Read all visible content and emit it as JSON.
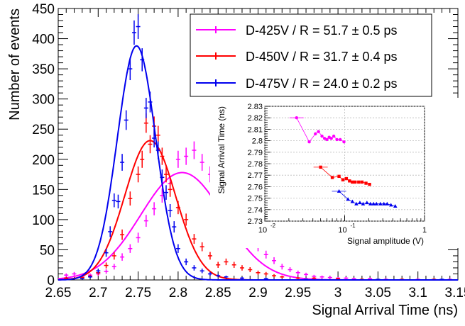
{
  "chart_data": [
    {
      "type": "scatter",
      "xlabel": "Signal Arrival Time (ns)",
      "ylabel": "Number of events",
      "xlim": [
        2.65,
        3.15
      ],
      "ylim": [
        0,
        450
      ],
      "x_ticks": [
        "2.65",
        "2.7",
        "2.75",
        "2.8",
        "2.85",
        "2.9",
        "2.95",
        "3",
        "3.05",
        "3.1",
        "3.15"
      ],
      "y_ticks": [
        "0",
        "50",
        "100",
        "150",
        "200",
        "250",
        "300",
        "350",
        "400",
        "450"
      ],
      "legend_position": "top-right",
      "series": [
        {
          "name": "D-425V / R = 51.7 ± 0.5 ps",
          "color": "#ff00ff",
          "fit": {
            "mean": 2.805,
            "sigma": 0.0517,
            "amplitude": 178
          },
          "points": [
            [
              2.66,
              8
            ],
            [
              2.67,
              10
            ],
            [
              2.68,
              6
            ],
            [
              2.69,
              8
            ],
            [
              2.7,
              10
            ],
            [
              2.71,
              14
            ],
            [
              2.72,
              22
            ],
            [
              2.73,
              38
            ],
            [
              2.74,
              52
            ],
            [
              2.75,
              70
            ],
            [
              2.76,
              98
            ],
            [
              2.77,
              118
            ],
            [
              2.78,
              140
            ],
            [
              2.79,
              160
            ],
            [
              2.8,
              200
            ],
            [
              2.81,
              205
            ],
            [
              2.82,
              215
            ],
            [
              2.83,
              195
            ],
            [
              2.84,
              175
            ],
            [
              2.85,
              150
            ],
            [
              2.86,
              135
            ],
            [
              2.87,
              110
            ],
            [
              2.88,
              92
            ],
            [
              2.89,
              70
            ],
            [
              2.9,
              55
            ],
            [
              2.91,
              42
            ],
            [
              2.92,
              32
            ],
            [
              2.93,
              22
            ],
            [
              2.94,
              17
            ],
            [
              2.95,
              12
            ],
            [
              2.96,
              9
            ],
            [
              2.97,
              6
            ],
            [
              2.98,
              5
            ],
            [
              2.99,
              4
            ],
            [
              3.0,
              3
            ],
            [
              3.01,
              3
            ],
            [
              3.02,
              2
            ],
            [
              3.04,
              2
            ],
            [
              3.06,
              1
            ],
            [
              3.1,
              1
            ],
            [
              3.14,
              1
            ]
          ]
        },
        {
          "name": "D-450V / R = 31.7 ± 0.4 ps",
          "color": "#ff0000",
          "fit": {
            "mean": 2.765,
            "sigma": 0.0317,
            "amplitude": 231
          },
          "points": [
            [
              2.66,
              3
            ],
            [
              2.68,
              4
            ],
            [
              2.69,
              6
            ],
            [
              2.7,
              12
            ],
            [
              2.71,
              24
            ],
            [
              2.72,
              40
            ],
            [
              2.73,
              75
            ],
            [
              2.74,
              135
            ],
            [
              2.75,
              175
            ],
            [
              2.755,
              200
            ],
            [
              2.76,
              260
            ],
            [
              2.765,
              225
            ],
            [
              2.77,
              255
            ],
            [
              2.775,
              240
            ],
            [
              2.78,
              205
            ],
            [
              2.785,
              175
            ],
            [
              2.79,
              150
            ],
            [
              2.8,
              120
            ],
            [
              2.81,
              100
            ],
            [
              2.82,
              68
            ],
            [
              2.83,
              55
            ],
            [
              2.84,
              40
            ],
            [
              2.85,
              25
            ],
            [
              2.86,
              30
            ],
            [
              2.87,
              25
            ],
            [
              2.88,
              20
            ],
            [
              2.89,
              17
            ],
            [
              2.9,
              12
            ],
            [
              2.91,
              10
            ],
            [
              2.92,
              7
            ],
            [
              2.93,
              5
            ],
            [
              2.95,
              3
            ],
            [
              2.97,
              3
            ],
            [
              3.0,
              2
            ],
            [
              3.03,
              1
            ],
            [
              3.08,
              1
            ],
            [
              3.12,
              1
            ]
          ]
        },
        {
          "name": "D-475V / R = 24.0 ± 0.2 ps",
          "color": "#0000ee",
          "fit": {
            "mean": 2.748,
            "sigma": 0.024,
            "amplitude": 388
          },
          "points": [
            [
              2.68,
              2
            ],
            [
              2.69,
              5
            ],
            [
              2.7,
              15
            ],
            [
              2.71,
              45
            ],
            [
              2.715,
              80
            ],
            [
              2.72,
              132
            ],
            [
              2.725,
              130
            ],
            [
              2.73,
              195
            ],
            [
              2.735,
              265
            ],
            [
              2.74,
              350
            ],
            [
              2.745,
              410
            ],
            [
              2.75,
              420
            ],
            [
              2.755,
              365
            ],
            [
              2.76,
              285
            ],
            [
              2.765,
              295
            ],
            [
              2.77,
              235
            ],
            [
              2.775,
              215
            ],
            [
              2.78,
              170
            ],
            [
              2.785,
              145
            ],
            [
              2.79,
              115
            ],
            [
              2.795,
              88
            ],
            [
              2.8,
              52
            ],
            [
              2.81,
              30
            ],
            [
              2.82,
              20
            ],
            [
              2.83,
              15
            ],
            [
              2.84,
              10
            ],
            [
              2.85,
              7
            ],
            [
              2.86,
              5
            ],
            [
              2.88,
              3
            ],
            [
              2.91,
              2
            ],
            [
              2.96,
              1
            ],
            [
              3.05,
              1
            ],
            [
              3.13,
              1
            ]
          ]
        }
      ]
    },
    {
      "type": "scatter",
      "xlabel": "Signal amplitude (V)",
      "ylabel": "Signal Arrival Time (ns)",
      "x_scale": "log",
      "xlim": [
        0.01,
        1
      ],
      "ylim": [
        2.73,
        2.83
      ],
      "x_ticks": [
        "10",
        "-2",
        "10",
        "-1",
        "1"
      ],
      "y_ticks": [
        "2.73",
        "2.74",
        "2.75",
        "2.76",
        "2.77",
        "2.78",
        "2.79",
        "2.8",
        "2.81",
        "2.82",
        "2.83"
      ],
      "grid": true,
      "series": [
        {
          "color": "#ff00ff",
          "marker": "circle",
          "points": [
            [
              0.025,
              2.82
            ],
            [
              0.036,
              2.799
            ],
            [
              0.043,
              2.806
            ],
            [
              0.047,
              2.808
            ],
            [
              0.052,
              2.804
            ],
            [
              0.056,
              2.802
            ],
            [
              0.06,
              2.801
            ],
            [
              0.064,
              2.803
            ],
            [
              0.068,
              2.802
            ],
            [
              0.073,
              2.804
            ],
            [
              0.08,
              2.801
            ],
            [
              0.088,
              2.801
            ],
            [
              0.098,
              2.799
            ]
          ]
        },
        {
          "color": "#ff0000",
          "marker": "square",
          "points": [
            [
              0.05,
              2.777
            ],
            [
              0.07,
              2.768
            ],
            [
              0.085,
              2.769
            ],
            [
              0.095,
              2.766
            ],
            [
              0.105,
              2.767
            ],
            [
              0.115,
              2.765
            ],
            [
              0.125,
              2.764
            ],
            [
              0.135,
              2.764
            ],
            [
              0.15,
              2.764
            ],
            [
              0.165,
              2.764
            ],
            [
              0.185,
              2.763
            ],
            [
              0.205,
              2.762
            ]
          ]
        },
        {
          "color": "#0000ee",
          "marker": "triangle",
          "points": [
            [
              0.085,
              2.756
            ],
            [
              0.11,
              2.749
            ],
            [
              0.125,
              2.747
            ],
            [
              0.14,
              2.745
            ],
            [
              0.155,
              2.746
            ],
            [
              0.17,
              2.745
            ],
            [
              0.19,
              2.746
            ],
            [
              0.21,
              2.745
            ],
            [
              0.23,
              2.745
            ],
            [
              0.25,
              2.745
            ],
            [
              0.28,
              2.745
            ],
            [
              0.31,
              2.745
            ],
            [
              0.34,
              2.745
            ],
            [
              0.38,
              2.744
            ],
            [
              0.43,
              2.743
            ]
          ]
        }
      ]
    }
  ]
}
